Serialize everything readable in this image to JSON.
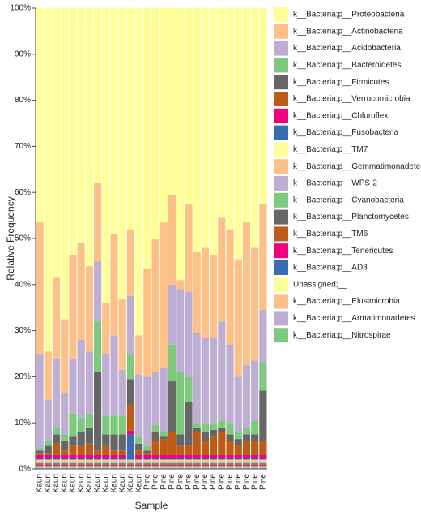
{
  "chart_data": {
    "type": "stacked-bar",
    "x_label": "Sample",
    "y_label": "Relative Frequency",
    "categories": [
      "Kauri",
      "Kauri",
      "Kauri",
      "Kauri",
      "Kauri",
      "Kauri",
      "Kauri",
      "Kauri",
      "Kauri",
      "Kauri",
      "Kauri",
      "Kauri",
      "Kauri",
      "Pine",
      "Pine",
      "Pine",
      "Pine",
      "Pine",
      "Pine",
      "Pine",
      "Pine",
      "Pine",
      "Pine",
      "Pine",
      "Pine",
      "Pine",
      "Pine",
      "Pine"
    ],
    "ylim": [
      0,
      100
    ],
    "yticks": [
      {
        "value": 0,
        "label": "0%"
      },
      {
        "value": 10,
        "label": "10%"
      },
      {
        "value": 20,
        "label": "20%"
      },
      {
        "value": 30,
        "label": "30%"
      },
      {
        "value": 40,
        "label": "40%"
      },
      {
        "value": 50,
        "label": "50%"
      },
      {
        "value": 60,
        "label": "60%"
      },
      {
        "value": 70,
        "label": "70%"
      },
      {
        "value": 80,
        "label": "80%"
      },
      {
        "value": 90,
        "label": "90%"
      },
      {
        "value": 100,
        "label": "100%"
      }
    ],
    "legend": "right",
    "series": [
      {
        "name": "k__Bacteria;p__Proteobacteria",
        "color": "#ffff99",
        "values": [
          46.5,
          74.5,
          58.5,
          67.5,
          53.5,
          51,
          56,
          38,
          64,
          49,
          63,
          48,
          71,
          56.5,
          50,
          46.5,
          40.5,
          59,
          42.5,
          53,
          52,
          53.5,
          45.5,
          48,
          54.5,
          46.5,
          52,
          42.5
        ]
      },
      {
        "name": "k__Bacteria;p__Actinobacteria",
        "color": "#fdc086",
        "values": [
          28.5,
          10.5,
          17.5,
          16,
          22.5,
          21,
          18.5,
          17,
          11,
          22,
          15.5,
          14.5,
          8.5,
          23.5,
          29,
          31.5,
          19.5,
          2,
          19,
          17.5,
          19.5,
          18,
          22.5,
          25,
          25.5,
          31,
          24.5,
          23
        ]
      },
      {
        "name": "k__Bacteria;p__Acidobacteria",
        "color": "#beaed4",
        "values": [
          20.5,
          9,
          15,
          9,
          12,
          17,
          13.5,
          13,
          13.5,
          17.5,
          10,
          12.5,
          13.5,
          15,
          11.5,
          14,
          13,
          18,
          18.5,
          19.5,
          18.5,
          18.5,
          21.5,
          17,
          12,
          13.5,
          13,
          11.5
        ]
      },
      {
        "name": "k__Bacteria;p__Bacteroidetes",
        "color": "#7fc97f",
        "values": [
          0.5,
          1,
          1.5,
          1.5,
          5,
          3,
          3,
          11,
          4,
          4,
          4,
          5.5,
          1.5,
          1,
          1.5,
          1,
          8,
          13.5,
          5.5,
          1,
          2,
          1.5,
          1.5,
          2.5,
          1.5,
          1.5,
          3,
          6
        ]
      },
      {
        "name": "k__Bacteria;p__Firmicutes",
        "color": "#666666",
        "values": [
          0.5,
          1.5,
          2,
          2,
          2,
          3,
          3.5,
          17,
          2.5,
          3.5,
          3.5,
          5.5,
          1.5,
          0.5,
          2,
          0.5,
          11,
          2.5,
          9.5,
          1,
          2,
          1.5,
          1,
          1.5,
          1.5,
          1.5,
          1.5,
          11
        ]
      },
      {
        "name": "k__Bacteria;p__Verrucomicrobia",
        "color": "#bf5b17",
        "values": [
          0.5,
          0.5,
          2.5,
          1,
          2,
          2,
          2.5,
          1,
          2,
          1,
          1,
          5.7,
          1,
          0.5,
          3,
          3.5,
          5,
          2,
          2,
          5,
          3,
          4,
          5,
          3,
          2,
          3,
          3,
          3
        ]
      },
      {
        "name": "k__Bacteria;p__Chloroflexi",
        "color": "#f0027f",
        "values": [
          0.8,
          0.8,
          0.8,
          0.8,
          0.8,
          0.8,
          0.8,
          0.8,
          0.8,
          0.8,
          0.8,
          0.8,
          0.8,
          0.8,
          0.8,
          0.8,
          0.8,
          0.8,
          0.8,
          0.8,
          0.8,
          0.8,
          0.8,
          0.8,
          0.8,
          0.8,
          0.8,
          0.8
        ]
      },
      {
        "name": "k__Bacteria;p__Fusobacteria",
        "color": "#386cb0",
        "values": [
          0.2,
          0.2,
          0.2,
          0.2,
          0.2,
          0.2,
          0.2,
          0.2,
          0.2,
          0.2,
          0.2,
          5.5,
          0.2,
          0.2,
          0.2,
          0.2,
          0.2,
          0.2,
          0.2,
          0.2,
          0.2,
          0.2,
          0.2,
          0.2,
          0.2,
          0.2,
          0.2,
          0.2
        ]
      },
      {
        "name": "k__Bacteria;p__TM7",
        "color": "#ffff99",
        "values": [
          0.1,
          0.1,
          0.1,
          0.1,
          0.1,
          0.1,
          0.1,
          0.1,
          0.1,
          0.1,
          0.1,
          0.1,
          0.1,
          0.1,
          0.1,
          0.1,
          0.1,
          0.1,
          0.1,
          0.1,
          0.1,
          0.1,
          0.1,
          0.1,
          0.1,
          0.1,
          0.1,
          0.1
        ]
      },
      {
        "name": "k__Bacteria;p__Gemmatimonadetes",
        "color": "#fdc086",
        "values": [
          0.4,
          0.4,
          0.4,
          0.4,
          0.4,
          0.4,
          0.4,
          0.4,
          0.4,
          0.4,
          0.4,
          0.4,
          0.4,
          0.4,
          0.4,
          0.4,
          0.4,
          0.4,
          0.4,
          0.4,
          0.4,
          0.4,
          0.4,
          0.4,
          0.4,
          0.4,
          0.4,
          0.4
        ]
      },
      {
        "name": "k__Bacteria;p__WPS-2",
        "color": "#beaed4",
        "values": [
          0.2,
          0.2,
          0.2,
          0.2,
          0.2,
          0.2,
          0.2,
          0.2,
          0.2,
          0.2,
          0.2,
          0.2,
          0.2,
          0.2,
          0.2,
          0.2,
          0.2,
          0.2,
          0.2,
          0.2,
          0.2,
          0.2,
          0.2,
          0.2,
          0.2,
          0.2,
          0.2,
          0.2
        ]
      },
      {
        "name": "k__Bacteria;p__Cyanobacteria",
        "color": "#7fc97f",
        "values": [
          0.1,
          0.1,
          0.1,
          0.1,
          0.1,
          0.1,
          0.1,
          0.1,
          0.1,
          0.1,
          0.1,
          0.1,
          0.1,
          0.1,
          0.1,
          0.1,
          0.1,
          0.1,
          0.1,
          0.1,
          0.1,
          0.1,
          0.1,
          0.1,
          0.1,
          0.1,
          0.1,
          0.1
        ]
      },
      {
        "name": "k__Bacteria;p__Planctomycetes",
        "color": "#666666",
        "values": [
          0.2,
          0.2,
          0.2,
          0.2,
          0.2,
          0.2,
          0.2,
          0.2,
          0.2,
          0.2,
          0.2,
          0.2,
          0.2,
          0.2,
          0.2,
          0.2,
          0.2,
          0.2,
          0.2,
          0.2,
          0.2,
          0.2,
          0.2,
          0.2,
          0.2,
          0.2,
          0.2,
          0.2
        ]
      },
      {
        "name": "k__Bacteria;p__TM6",
        "color": "#bf5b17",
        "values": [
          0.2,
          0.2,
          0.2,
          0.2,
          0.2,
          0.2,
          0.2,
          0.2,
          0.2,
          0.2,
          0.2,
          0.2,
          0.2,
          0.2,
          0.2,
          0.2,
          0.2,
          0.2,
          0.2,
          0.2,
          0.2,
          0.2,
          0.2,
          0.2,
          0.2,
          0.2,
          0.2,
          0.2
        ]
      },
      {
        "name": "k__Bacteria;p__Tenericutes",
        "color": "#f0027f",
        "values": [
          0.1,
          0.1,
          0.1,
          0.1,
          0.1,
          0.1,
          0.1,
          0.1,
          0.1,
          0.1,
          0.1,
          0.1,
          0.1,
          0.1,
          0.1,
          0.1,
          0.1,
          0.1,
          0.1,
          0.1,
          0.1,
          0.1,
          0.1,
          0.1,
          0.1,
          0.1,
          0.1,
          0.1
        ]
      },
      {
        "name": "k__Bacteria;p__AD3",
        "color": "#386cb0",
        "values": [
          0.1,
          0.1,
          0.1,
          0.1,
          0.1,
          0.1,
          0.1,
          0.1,
          0.1,
          0.1,
          0.1,
          0.1,
          0.1,
          0.1,
          0.1,
          0.1,
          0.1,
          0.1,
          0.1,
          0.1,
          0.1,
          0.1,
          0.1,
          0.1,
          0.1,
          0.1,
          0.1,
          0.1
        ]
      },
      {
        "name": "Unassigned;__",
        "color": "#ffff99",
        "values": [
          0.2,
          0.2,
          0.2,
          0.2,
          0.2,
          0.2,
          0.2,
          0.2,
          0.2,
          0.2,
          0.2,
          0.2,
          0.2,
          0.2,
          0.2,
          0.2,
          0.2,
          0.2,
          0.2,
          0.2,
          0.2,
          0.2,
          0.2,
          0.2,
          0.2,
          0.2,
          0.2,
          0.2
        ]
      },
      {
        "name": "k__Bacteria;p__Elusimicrobia",
        "color": "#fdc086",
        "values": [
          0.1,
          0.1,
          0.1,
          0.1,
          0.1,
          0.1,
          0.1,
          0.1,
          0.1,
          0.1,
          0.1,
          0.1,
          0.1,
          0.1,
          0.1,
          0.1,
          0.1,
          0.1,
          0.1,
          0.1,
          0.1,
          0.1,
          0.1,
          0.1,
          0.1,
          0.1,
          0.1,
          0.1
        ]
      },
      {
        "name": "k__Bacteria;p__Armatimonadetes",
        "color": "#beaed4",
        "values": [
          0.2,
          0.2,
          0.2,
          0.2,
          0.2,
          0.2,
          0.2,
          0.2,
          0.2,
          0.2,
          0.2,
          0.2,
          0.2,
          0.2,
          0.2,
          0.2,
          0.2,
          0.2,
          0.2,
          0.2,
          0.2,
          0.2,
          0.2,
          0.2,
          0.2,
          0.2,
          0.2,
          0.2
        ]
      },
      {
        "name": "k__Bacteria;p__Nitrospirae",
        "color": "#7fc97f",
        "values": [
          0.1,
          0.1,
          0.1,
          0.1,
          0.1,
          0.1,
          0.1,
          0.1,
          0.1,
          0.1,
          0.1,
          0.1,
          0.1,
          0.1,
          0.1,
          0.1,
          0.1,
          0.1,
          0.1,
          0.1,
          0.1,
          0.1,
          0.1,
          0.1,
          0.1,
          0.1,
          0.1,
          0.1
        ]
      }
    ]
  }
}
